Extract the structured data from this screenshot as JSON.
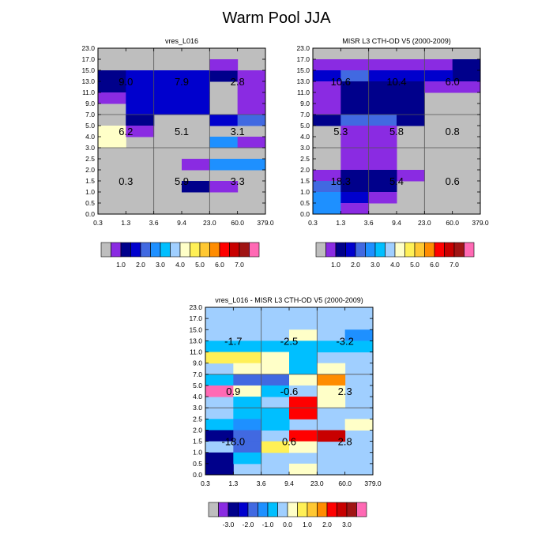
{
  "title": "Warm Pool JJA",
  "y_ticks": [
    "0.0",
    "0.5",
    "1.0",
    "1.5",
    "2.0",
    "2.5",
    "3.0",
    "4.0",
    "5.0",
    "7.0",
    "9.0",
    "11.0",
    "13.0",
    "15.0",
    "17.0",
    "23.0"
  ],
  "x_ticks": [
    "0.3",
    "1.3",
    "3.6",
    "9.4",
    "23.0",
    "60.0",
    "379.0"
  ],
  "palette": {
    "G": "#bebebe",
    "P": "#8a2be2",
    "N": "#00008b",
    "D": "#0000cd",
    "B": "#4169e1",
    "L": "#1e90ff",
    "S": "#00bfff",
    "A": "#a0cfff",
    "Y": "#ffffc8",
    "Q": "#fff056",
    "O": "#ffc832",
    "R": "#ff8c00",
    "E": "#ff0000",
    "C": "#c80000",
    "K": "#a01414",
    "M": "#ff69b4"
  },
  "colorbar_swatches": [
    "G",
    "P",
    "N",
    "D",
    "B",
    "L",
    "S",
    "A",
    "Y",
    "Q",
    "O",
    "R",
    "E",
    "C",
    "K",
    "M"
  ],
  "chart_data": [
    {
      "type": "heatmap",
      "title": "vres_L016",
      "xlabel": "",
      "ylabel": "",
      "legend": "colorbar-bottom",
      "colorbar_labels": [
        "1.0",
        "2.0",
        "3.0",
        "4.0",
        "5.0",
        "6.0",
        "7.0"
      ],
      "cells": [
        "GGGGGGGGG",
        "GGGGGGGGG",
        "GGGGGGGGG",
        "GGGGGGPGG",
        "GGGGGGPGG",
        "GGGGGGPGG",
        "GGGGGGPGG",
        "GGGGGGGGG",
        "GGGGGGGGG",
        "GGGGGGGGG",
        "GGGGGGGGG",
        "GGGGGGGGG",
        "GGGGGGGGG",
        "GGGGGGGGG",
        "GGGGGGGGG",
        "GGGGGGGGG",
        "GGGGGGGGG",
        "GGGGGGGGG",
        "GGGGGGGGG",
        "GGGGGGGGG",
        "GGGGGGGGG",
        "GGGGGGGGG",
        "GGGGGGGGG",
        "GGGGGGGGG",
        "GGGGGGGGG",
        "GGGGGGGGG",
        "GGGGGGGGG",
        "GGGGGGGGG",
        "GGGGGGGGG",
        "GGGGGGGGG"
      ],
      "regions": [
        {
          "x0": 0,
          "x1": 1,
          "y0": 11,
          "y1": 13,
          "c": "N"
        },
        {
          "x0": 1,
          "x1": 3,
          "y0": 11,
          "y1": 13,
          "c": "D"
        },
        {
          "x0": 3,
          "x1": 4,
          "y0": 11,
          "y1": 13,
          "c": "D"
        },
        {
          "x0": 4,
          "x1": 5,
          "y0": 12,
          "y1": 13,
          "c": "N"
        },
        {
          "x0": 5,
          "x1": 6,
          "y0": 12,
          "y1": 13,
          "c": "N"
        },
        {
          "x0": 4,
          "x1": 5,
          "y0": 13,
          "y1": 14,
          "c": "P"
        },
        {
          "x0": 5,
          "x1": 6,
          "y0": 11,
          "y1": 13,
          "c": "P"
        },
        {
          "x0": 0,
          "x1": 1,
          "y0": 10,
          "y1": 11,
          "c": "P"
        },
        {
          "x0": 1,
          "x1": 2,
          "y0": 8,
          "y1": 11,
          "c": "D"
        },
        {
          "x0": 2,
          "x1": 3,
          "y0": 9,
          "y1": 11,
          "c": "D"
        },
        {
          "x0": 3,
          "x1": 4,
          "y0": 9,
          "y1": 11,
          "c": "D"
        },
        {
          "x0": 5,
          "x1": 6,
          "y0": 9,
          "y1": 11,
          "c": "P"
        },
        {
          "x0": 1,
          "x1": 2,
          "y0": 8,
          "y1": 9,
          "c": "N"
        },
        {
          "x0": 4,
          "x1": 5,
          "y0": 8,
          "y1": 9,
          "c": "D"
        },
        {
          "x0": 5,
          "x1": 6,
          "y0": 8,
          "y1": 9,
          "c": "B"
        },
        {
          "x0": 0,
          "x1": 1,
          "y0": 6,
          "y1": 8,
          "c": "Y"
        },
        {
          "x0": 1,
          "x1": 2,
          "y0": 7,
          "y1": 8,
          "c": "P"
        },
        {
          "x0": 4,
          "x1": 5,
          "y0": 6,
          "y1": 7,
          "c": "L"
        },
        {
          "x0": 5,
          "x1": 6,
          "y0": 6,
          "y1": 7,
          "c": "P"
        },
        {
          "x0": 3,
          "x1": 4,
          "y0": 4,
          "y1": 5,
          "c": "P"
        },
        {
          "x0": 4,
          "x1": 6,
          "y0": 4,
          "y1": 5,
          "c": "L"
        },
        {
          "x0": 3,
          "x1": 4,
          "y0": 2,
          "y1": 3,
          "c": "N"
        },
        {
          "x0": 4,
          "x1": 5,
          "y0": 2,
          "y1": 3,
          "c": "P"
        }
      ],
      "box_labels": [
        {
          "row": "top",
          "col": 0,
          "text": "9.0"
        },
        {
          "row": "top",
          "col": 1,
          "text": "7.9"
        },
        {
          "row": "top",
          "col": 2,
          "text": "2.8"
        },
        {
          "row": "mid",
          "col": 0,
          "text": "6.2"
        },
        {
          "row": "mid",
          "col": 1,
          "text": "5.1"
        },
        {
          "row": "mid",
          "col": 2,
          "text": "3.1"
        },
        {
          "row": "bot",
          "col": 0,
          "text": "0.3"
        },
        {
          "row": "bot",
          "col": 1,
          "text": "5.9"
        },
        {
          "row": "bot",
          "col": 2,
          "text": "3.3"
        }
      ]
    },
    {
      "type": "heatmap",
      "title": "MISR L3 CTH-OD V5 (2000-2009)",
      "xlabel": "",
      "ylabel": "",
      "legend": "colorbar-bottom",
      "colorbar_labels": [
        "1.0",
        "2.0",
        "3.0",
        "4.0",
        "5.0",
        "6.0",
        "7.0"
      ],
      "regions": [
        {
          "x0": 0,
          "x1": 2,
          "y0": 13,
          "y1": 14,
          "c": "P"
        },
        {
          "x0": 2,
          "x1": 4,
          "y0": 13,
          "y1": 14,
          "c": "P"
        },
        {
          "x0": 4,
          "x1": 5,
          "y0": 13,
          "y1": 14,
          "c": "P"
        },
        {
          "x0": 5,
          "x1": 6,
          "y0": 12,
          "y1": 14,
          "c": "N"
        },
        {
          "x0": 0,
          "x1": 1,
          "y0": 12,
          "y1": 13,
          "c": "D"
        },
        {
          "x0": 1,
          "x1": 2,
          "y0": 12,
          "y1": 13,
          "c": "B"
        },
        {
          "x0": 2,
          "x1": 4,
          "y0": 12,
          "y1": 13,
          "c": "D"
        },
        {
          "x0": 4,
          "x1": 5,
          "y0": 12,
          "y1": 13,
          "c": "D"
        },
        {
          "x0": 5,
          "x1": 6,
          "y0": 11,
          "y1": 12,
          "c": "P"
        },
        {
          "x0": 0,
          "x1": 1,
          "y0": 9,
          "y1": 12,
          "c": "P"
        },
        {
          "x0": 1,
          "x1": 4,
          "y0": 9,
          "y1": 12,
          "c": "N"
        },
        {
          "x0": 4,
          "x1": 5,
          "y0": 11,
          "y1": 12,
          "c": "P"
        },
        {
          "x0": 0,
          "x1": 1,
          "y0": 8,
          "y1": 9,
          "c": "N"
        },
        {
          "x0": 1,
          "x1": 2,
          "y0": 8,
          "y1": 9,
          "c": "B"
        },
        {
          "x0": 2,
          "x1": 3,
          "y0": 8,
          "y1": 9,
          "c": "B"
        },
        {
          "x0": 3,
          "x1": 4,
          "y0": 8,
          "y1": 9,
          "c": "N"
        },
        {
          "x0": 1,
          "x1": 3,
          "y0": 3,
          "y1": 8,
          "c": "P"
        },
        {
          "x0": 0,
          "x1": 1,
          "y0": 3,
          "y1": 4,
          "c": "P"
        },
        {
          "x0": 3,
          "x1": 4,
          "y0": 3,
          "y1": 4,
          "c": "P"
        },
        {
          "x0": 0,
          "x1": 1,
          "y0": 2,
          "y1": 3,
          "c": "B"
        },
        {
          "x0": 1,
          "x1": 3,
          "y0": 1,
          "y1": 4,
          "c": "N"
        },
        {
          "x0": 0,
          "x1": 1,
          "y0": 1,
          "y1": 2,
          "c": "L"
        },
        {
          "x0": 1,
          "x1": 2,
          "y0": 1,
          "y1": 2,
          "c": "D"
        },
        {
          "x0": 2,
          "x1": 3,
          "y0": 1,
          "y1": 2,
          "c": "P"
        },
        {
          "x0": 0,
          "x1": 1,
          "y0": 0,
          "y1": 1,
          "c": "L"
        },
        {
          "x0": 1,
          "x1": 2,
          "y0": 0,
          "y1": 1,
          "c": "P"
        }
      ],
      "box_labels": [
        {
          "row": "top",
          "col": 0,
          "text": "10.6"
        },
        {
          "row": "top",
          "col": 1,
          "text": "10.4"
        },
        {
          "row": "top",
          "col": 2,
          "text": "6.0"
        },
        {
          "row": "mid",
          "col": 0,
          "text": "5.3"
        },
        {
          "row": "mid",
          "col": 1,
          "text": "5.8"
        },
        {
          "row": "mid",
          "col": 2,
          "text": "0.8"
        },
        {
          "row": "bot",
          "col": 0,
          "text": "18.3"
        },
        {
          "row": "bot",
          "col": 1,
          "text": "5.4"
        },
        {
          "row": "bot",
          "col": 2,
          "text": "0.6"
        }
      ]
    },
    {
      "type": "heatmap",
      "title": "vres_L016 - MISR L3 CTH-OD V5 (2000-2009)",
      "xlabel": "",
      "ylabel": "",
      "legend": "colorbar-bottom",
      "colorbar_labels": [
        "-3.0",
        "-2.0",
        "-1.0",
        "0.0",
        "1.0",
        "2.0",
        "3.0"
      ],
      "background": "A",
      "regions": [
        {
          "x0": 3,
          "x1": 4,
          "y0": 12,
          "y1": 13,
          "c": "Y"
        },
        {
          "x0": 5,
          "x1": 6,
          "y0": 12,
          "y1": 13,
          "c": "L"
        },
        {
          "x0": 0,
          "x1": 1,
          "y0": 11,
          "y1": 12,
          "c": "S"
        },
        {
          "x0": 1,
          "x1": 2,
          "y0": 11,
          "y1": 12,
          "c": "S"
        },
        {
          "x0": 2,
          "x1": 3,
          "y0": 11,
          "y1": 12,
          "c": "S"
        },
        {
          "x0": 3,
          "x1": 4,
          "y0": 11,
          "y1": 12,
          "c": "S"
        },
        {
          "x0": 4,
          "x1": 5,
          "y0": 11,
          "y1": 12,
          "c": "S"
        },
        {
          "x0": 5,
          "x1": 6,
          "y0": 11,
          "y1": 12,
          "c": "S"
        },
        {
          "x0": 0,
          "x1": 2,
          "y0": 10,
          "y1": 11,
          "c": "Q"
        },
        {
          "x0": 2,
          "x1": 3,
          "y0": 9,
          "y1": 11,
          "c": "Y"
        },
        {
          "x0": 3,
          "x1": 4,
          "y0": 9,
          "y1": 11,
          "c": "S"
        },
        {
          "x0": 4,
          "x1": 5,
          "y0": 9,
          "y1": 10,
          "c": "Y"
        },
        {
          "x0": 1,
          "x1": 2,
          "y0": 9,
          "y1": 10,
          "c": "Y"
        },
        {
          "x0": 0,
          "x1": 1,
          "y0": 8,
          "y1": 9,
          "c": "S"
        },
        {
          "x0": 1,
          "x1": 2,
          "y0": 8,
          "y1": 9,
          "c": "B"
        },
        {
          "x0": 2,
          "x1": 3,
          "y0": 8,
          "y1": 9,
          "c": "B"
        },
        {
          "x0": 3,
          "x1": 4,
          "y0": 8,
          "y1": 9,
          "c": "Y"
        },
        {
          "x0": 4,
          "x1": 5,
          "y0": 8,
          "y1": 9,
          "c": "R"
        },
        {
          "x0": 0,
          "x1": 1,
          "y0": 7,
          "y1": 8,
          "c": "M"
        },
        {
          "x0": 1,
          "x1": 2,
          "y0": 7,
          "y1": 8,
          "c": "Y"
        },
        {
          "x0": 2,
          "x1": 3,
          "y0": 7,
          "y1": 8,
          "c": "S"
        },
        {
          "x0": 3,
          "x1": 4,
          "y0": 7,
          "y1": 8,
          "c": "A"
        },
        {
          "x0": 4,
          "x1": 5,
          "y0": 6,
          "y1": 8,
          "c": "Y"
        },
        {
          "x0": 1,
          "x1": 2,
          "y0": 6,
          "y1": 7,
          "c": "S"
        },
        {
          "x0": 3,
          "x1": 4,
          "y0": 6,
          "y1": 7,
          "c": "E"
        },
        {
          "x0": 1,
          "x1": 2,
          "y0": 5,
          "y1": 6,
          "c": "S"
        },
        {
          "x0": 2,
          "x1": 3,
          "y0": 5,
          "y1": 6,
          "c": "S"
        },
        {
          "x0": 3,
          "x1": 4,
          "y0": 5,
          "y1": 6,
          "c": "E"
        },
        {
          "x0": 0,
          "x1": 1,
          "y0": 4,
          "y1": 5,
          "c": "S"
        },
        {
          "x0": 1,
          "x1": 2,
          "y0": 4,
          "y1": 5,
          "c": "L"
        },
        {
          "x0": 2,
          "x1": 3,
          "y0": 4,
          "y1": 5,
          "c": "S"
        },
        {
          "x0": 0,
          "x1": 1,
          "y0": 3,
          "y1": 4,
          "c": "N"
        },
        {
          "x0": 1,
          "x1": 2,
          "y0": 3,
          "y1": 4,
          "c": "B"
        },
        {
          "x0": 3,
          "x1": 4,
          "y0": 3,
          "y1": 4,
          "c": "E"
        },
        {
          "x0": 4,
          "x1": 5,
          "y0": 3,
          "y1": 4,
          "c": "C"
        },
        {
          "x0": 5,
          "x1": 6,
          "y0": 4,
          "y1": 5,
          "c": "Y"
        },
        {
          "x0": 0,
          "x1": 1,
          "y0": 2,
          "y1": 3,
          "c": "A"
        },
        {
          "x0": 1,
          "x1": 2,
          "y0": 2,
          "y1": 3,
          "c": "B"
        },
        {
          "x0": 2,
          "x1": 3,
          "y0": 2,
          "y1": 3,
          "c": "Q"
        },
        {
          "x0": 3,
          "x1": 4,
          "y0": 2,
          "y1": 3,
          "c": "Y"
        },
        {
          "x0": 0,
          "x1": 1,
          "y0": 0,
          "y1": 2,
          "c": "N"
        },
        {
          "x0": 1,
          "x1": 2,
          "y0": 1,
          "y1": 2,
          "c": "S"
        },
        {
          "x0": 3,
          "x1": 4,
          "y0": 0,
          "y1": 1,
          "c": "Y"
        }
      ],
      "box_labels": [
        {
          "row": "top",
          "col": 0,
          "text": "-1.7"
        },
        {
          "row": "top",
          "col": 1,
          "text": "-2.5"
        },
        {
          "row": "top",
          "col": 2,
          "text": "-3.2"
        },
        {
          "row": "mid",
          "col": 0,
          "text": "0.9"
        },
        {
          "row": "mid",
          "col": 1,
          "text": "-0.6"
        },
        {
          "row": "mid",
          "col": 2,
          "text": "2.3"
        },
        {
          "row": "bot",
          "col": 0,
          "text": "-18.0"
        },
        {
          "row": "bot",
          "col": 1,
          "text": "0.6"
        },
        {
          "row": "bot",
          "col": 2,
          "text": "2.8"
        }
      ]
    }
  ]
}
